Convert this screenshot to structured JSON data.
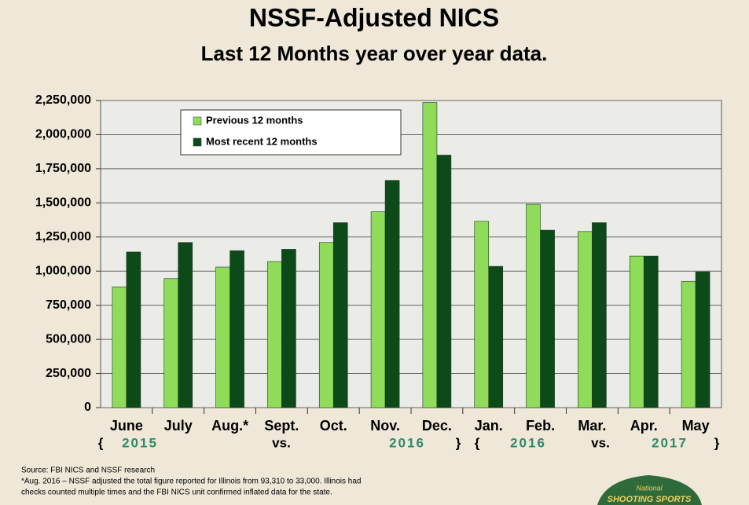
{
  "chart_data": {
    "type": "bar",
    "title": "NSSF-Adjusted NICS",
    "subtitle": "Last 12 Months year over year data.",
    "categories": [
      "June",
      "July",
      "Aug.*",
      "Sept.",
      "Oct.",
      "Nov.",
      "Dec.",
      "Jan.",
      "Feb.",
      "Mar.",
      "Apr.",
      "May"
    ],
    "series": [
      {
        "name": "Previous 12 months",
        "color": "#8fdc5a",
        "values": [
          885000,
          945000,
          1030000,
          1070000,
          1210000,
          1435000,
          2235000,
          1365000,
          1490000,
          1290000,
          1110000,
          925000
        ]
      },
      {
        "name": "Most recent 12 months",
        "color": "#0d4a1a",
        "values": [
          1140000,
          1210000,
          1150000,
          1160000,
          1355000,
          1665000,
          1850000,
          1035000,
          1300000,
          1355000,
          1110000,
          995000
        ]
      }
    ],
    "ylim": [
      0,
      2250000
    ],
    "yticks": [
      0,
      {
        "value": 250000,
        "label": "250,000"
      },
      {
        "value": 500000,
        "label": "500,000"
      },
      {
        "value": 750000,
        "label": "750,000"
      },
      {
        "value": 1000000,
        "label": "1,000,000"
      },
      {
        "value": 1250000,
        "label": "1,250,000"
      },
      {
        "value": 1500000,
        "label": "1,500,000"
      },
      {
        "value": 1750000,
        "label": "1,750,000"
      },
      {
        "value": 2000000,
        "label": "2,000,000"
      },
      {
        "value": 2250000,
        "label": "2,250,000"
      }
    ],
    "grid": true,
    "legend": "top-left",
    "period_labels": [
      "{",
      "2015",
      "vs.",
      "2016",
      "}",
      "{",
      "2016",
      "vs.",
      "2017",
      "}"
    ],
    "source": "Source: FBI NICS and NSSF research",
    "note": [
      "*Aug. 2016 – NSSF adjusted the total figure reported for Illinois from 93,310 to 33,000. Illinois had",
      "checks counted multiple times and the FBI NICS unit confirmed inflated data for the state."
    ],
    "logo": [
      "National",
      "SHOOTING SPORTS"
    ]
  }
}
